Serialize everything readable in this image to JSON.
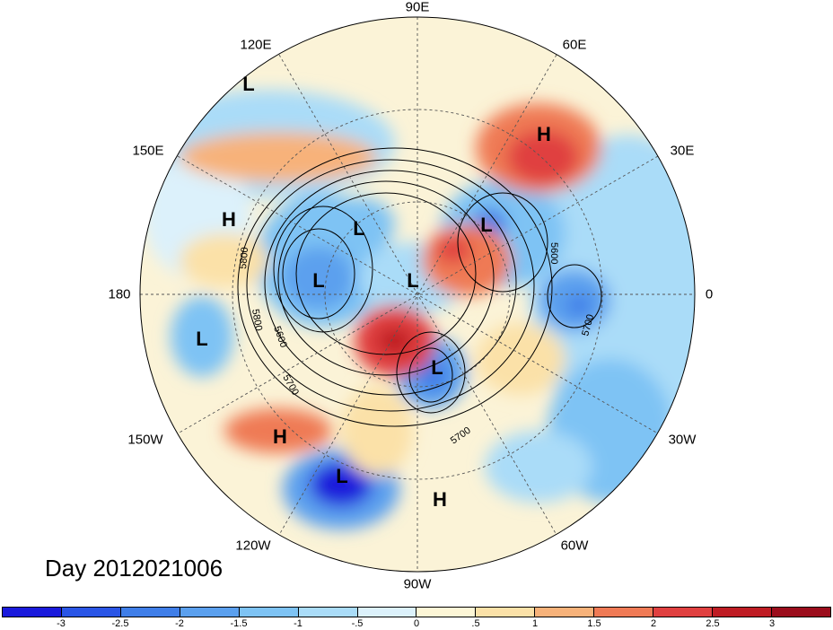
{
  "title": "Day 2012021006",
  "longitude_labels": {
    "top": "90E",
    "upper_left": "120E",
    "upper_right": "60E",
    "left_upper": "150E",
    "right_upper": "30E",
    "left": "180",
    "right": "0",
    "left_lower": "150W",
    "right_lower": "30W",
    "lower_left": "120W",
    "lower_right": "60W",
    "bottom": "90W"
  },
  "pressure_centers": [
    {
      "label": "L",
      "name": "low-1"
    },
    {
      "label": "L",
      "name": "low-2"
    },
    {
      "label": "L",
      "name": "low-3"
    },
    {
      "label": "L",
      "name": "low-4"
    },
    {
      "label": "L",
      "name": "low-5"
    },
    {
      "label": "L",
      "name": "low-6"
    },
    {
      "label": "L",
      "name": "low-7"
    },
    {
      "label": "L",
      "name": "low-8"
    },
    {
      "label": "H",
      "name": "high-1"
    },
    {
      "label": "H",
      "name": "high-2"
    },
    {
      "label": "H",
      "name": "high-3"
    },
    {
      "label": "H",
      "name": "high-4"
    }
  ],
  "contour_labels": [
    "5800",
    "5800",
    "5600",
    "5700",
    "5600",
    "5700",
    "5700"
  ],
  "colorbar": {
    "ticks": [
      "-3",
      "-2.5",
      "-2",
      "-1.5",
      "-1",
      "-.5",
      "0",
      ".5",
      "1",
      "1.5",
      "2",
      "2.5",
      "3"
    ],
    "colors": [
      "#1a1adc",
      "#2a55e6",
      "#3f7ee8",
      "#5ba0ee",
      "#7ec3f4",
      "#aadcf8",
      "#dcf1fb",
      "#fdf6d6",
      "#fbe1a8",
      "#f7b27a",
      "#ef7a55",
      "#e04040",
      "#bf1c24",
      "#9b0d1c"
    ]
  }
}
